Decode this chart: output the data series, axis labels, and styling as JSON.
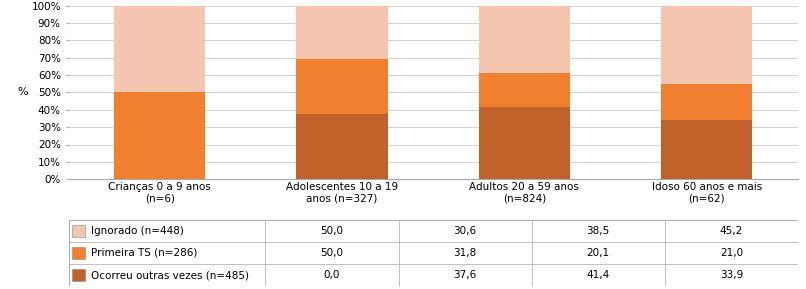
{
  "categories": [
    "Crianças 0 a 9 anos\n(n=6)",
    "Adolescentes 10 a 19\nanos (n=327)",
    "Adultos 20 a 59 anos\n(n=824)",
    "Idoso 60 anos e mais\n(n=62)"
  ],
  "series_bottom_to_top": [
    {
      "label": "Ocorreu outras vezes (n=485)",
      "values": [
        0.0,
        37.6,
        41.4,
        33.9
      ],
      "color": "#C0622A"
    },
    {
      "label": "Primeira TS (n=286)",
      "values": [
        50.0,
        31.8,
        20.1,
        21.0
      ],
      "color": "#F08030"
    },
    {
      "label": "Ignorado (n=448)",
      "values": [
        50.0,
        30.6,
        38.5,
        45.2
      ],
      "color": "#F5C5B0"
    }
  ],
  "table_rows": [
    {
      "label": "Ignorado (n=448)",
      "color": "#F5C5B0",
      "values": [
        "50,0",
        "30,6",
        "38,5",
        "45,2"
      ]
    },
    {
      "label": "Primeira TS (n=286)",
      "color": "#F08030",
      "values": [
        "50,0",
        "31,8",
        "20,1",
        "21,0"
      ]
    },
    {
      "label": "Ocorreu outras vezes (n=485)",
      "color": "#C0622A",
      "values": [
        "0,0",
        "37,6",
        "41,4",
        "33,9"
      ]
    }
  ],
  "ylabel": "%",
  "yticks": [
    0,
    10,
    20,
    30,
    40,
    50,
    60,
    70,
    80,
    90,
    100
  ],
  "ytick_labels": [
    "0%",
    "10%",
    "20%",
    "30%",
    "40%",
    "50%",
    "60%",
    "70%",
    "80%",
    "90%",
    "100%"
  ],
  "ylim": [
    0,
    100
  ],
  "grid_color": "#CCCCCC",
  "bar_width": 0.5,
  "font_size_axis": 7.5,
  "font_size_table": 7.5,
  "font_size_ylabel": 8
}
